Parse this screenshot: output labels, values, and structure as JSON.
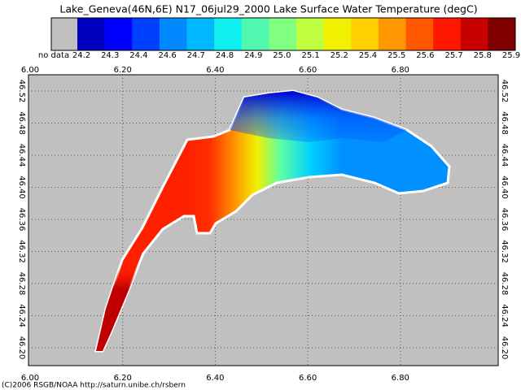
{
  "title": "Lake_Geneva(46N,6E) N17_06jul29_2000 Lake Surface Water Temperature (degC)",
  "legend": {
    "no_data_label": "no data",
    "no_data_color": "#c0c0c0",
    "items": [
      {
        "label": "24.2",
        "color": "#0000c0"
      },
      {
        "label": "24.3",
        "color": "#0000ff"
      },
      {
        "label": "24.4",
        "color": "#0040ff"
      },
      {
        "label": "24.6",
        "color": "#0088ff"
      },
      {
        "label": "24.7",
        "color": "#00b8ff"
      },
      {
        "label": "24.8",
        "color": "#10f0f0"
      },
      {
        "label": "24.9",
        "color": "#50f8b0"
      },
      {
        "label": "25.0",
        "color": "#80ff80"
      },
      {
        "label": "25.1",
        "color": "#c0ff40"
      },
      {
        "label": "25.2",
        "color": "#f0f000"
      },
      {
        "label": "25.4",
        "color": "#ffd000"
      },
      {
        "label": "25.5",
        "color": "#ff9800"
      },
      {
        "label": "25.6",
        "color": "#ff5800"
      },
      {
        "label": "25.7",
        "color": "#ff1800"
      },
      {
        "label": "25.8",
        "color": "#c80000"
      },
      {
        "label": "25.9",
        "color": "#800000"
      }
    ]
  },
  "map": {
    "lon_ticks": [
      "6.00",
      "6.20",
      "6.40",
      "6.60",
      "6.80"
    ],
    "lat_ticks": [
      "46.52",
      "46.48",
      "46.44",
      "46.40",
      "46.36",
      "46.32",
      "46.28",
      "46.24",
      "46.20"
    ]
  },
  "footer": "(C)2006 RSGB/NOAA  http://saturn.unibe.ch/rsbern"
}
